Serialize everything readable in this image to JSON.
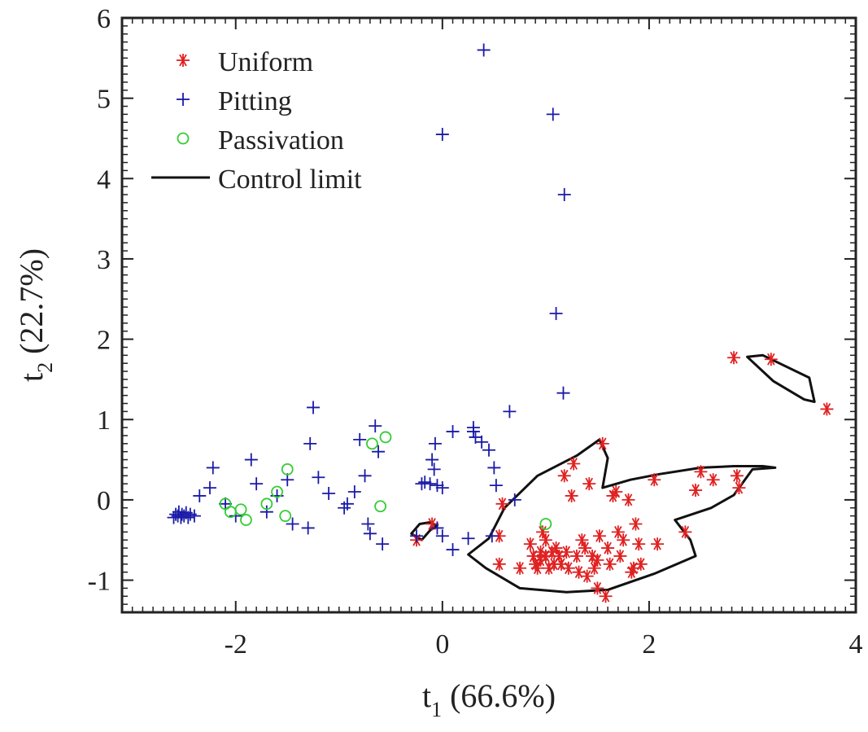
{
  "chart_data": {
    "type": "scatter",
    "title": "",
    "xlabel": {
      "main": "t",
      "sub": "1",
      "rest": " (66.6%)"
    },
    "ylabel": {
      "main": "t",
      "sub": "2",
      "rest": " (22.7%)"
    },
    "xlim": [
      -3.1,
      4.0
    ],
    "ylim": [
      -1.4,
      6.0
    ],
    "xticks": [
      -2,
      0,
      2,
      4
    ],
    "xtick_labels": [
      "-2",
      "0",
      "2",
      "4"
    ],
    "yticks": [
      -1,
      0,
      1,
      2,
      3,
      4,
      5,
      6
    ],
    "ytick_labels": [
      "-1",
      "0",
      "1",
      "2",
      "3",
      "4",
      "5",
      "6"
    ],
    "grid": false,
    "legend_position": "top-left",
    "series": [
      {
        "name": "Uniform",
        "marker": "asterisk",
        "color": "#e02020",
        "points": [
          [
            -0.25,
            -0.5
          ],
          [
            -0.1,
            -0.3
          ],
          [
            0.55,
            -0.45
          ],
          [
            0.55,
            -0.8
          ],
          [
            0.58,
            -0.05
          ],
          [
            0.75,
            -0.85
          ],
          [
            0.85,
            -0.55
          ],
          [
            0.88,
            -0.7
          ],
          [
            0.9,
            -0.8
          ],
          [
            0.92,
            -0.85
          ],
          [
            0.95,
            -0.75
          ],
          [
            0.97,
            -0.4
          ],
          [
            1.0,
            -0.5
          ],
          [
            1.0,
            -0.7
          ],
          [
            1.03,
            -0.85
          ],
          [
            1.06,
            -0.65
          ],
          [
            1.08,
            -0.8
          ],
          [
            1.1,
            -0.6
          ],
          [
            1.13,
            -0.7
          ],
          [
            1.15,
            -0.8
          ],
          [
            1.18,
            0.3
          ],
          [
            1.2,
            -0.65
          ],
          [
            1.22,
            -0.85
          ],
          [
            1.25,
            0.05
          ],
          [
            1.27,
            0.45
          ],
          [
            1.3,
            -0.7
          ],
          [
            1.32,
            -0.9
          ],
          [
            1.35,
            -0.5
          ],
          [
            1.38,
            -0.6
          ],
          [
            1.4,
            -0.95
          ],
          [
            1.42,
            0.2
          ],
          [
            1.45,
            -0.7
          ],
          [
            1.47,
            -0.85
          ],
          [
            1.5,
            -1.1
          ],
          [
            1.52,
            -0.45
          ],
          [
            1.55,
            0.7
          ],
          [
            1.58,
            -1.2
          ],
          [
            1.6,
            -0.6
          ],
          [
            1.62,
            -0.8
          ],
          [
            1.65,
            0.05
          ],
          [
            1.68,
            0.1
          ],
          [
            1.7,
            -0.4
          ],
          [
            1.72,
            -0.7
          ],
          [
            1.75,
            -0.5
          ],
          [
            1.8,
            0.0
          ],
          [
            1.83,
            -0.9
          ],
          [
            1.87,
            -0.3
          ],
          [
            1.9,
            -0.55
          ],
          [
            1.92,
            -0.8
          ],
          [
            2.05,
            0.25
          ],
          [
            2.08,
            -0.55
          ],
          [
            2.35,
            -0.4
          ],
          [
            2.45,
            0.12
          ],
          [
            2.5,
            0.35
          ],
          [
            2.62,
            0.25
          ],
          [
            2.85,
            0.3
          ],
          [
            2.87,
            0.15
          ],
          [
            2.82,
            1.77
          ],
          [
            3.18,
            1.75
          ],
          [
            3.72,
            1.13
          ],
          [
            1.85,
            -0.85
          ],
          [
            1.5,
            -0.75
          ],
          [
            0.95,
            -0.65
          ]
        ]
      },
      {
        "name": "Pitting",
        "marker": "plus",
        "color": "#1a1aa8",
        "points": [
          [
            -2.6,
            -0.22
          ],
          [
            -2.58,
            -0.18
          ],
          [
            -2.56,
            -0.2
          ],
          [
            -2.55,
            -0.15
          ],
          [
            -2.53,
            -0.22
          ],
          [
            -2.52,
            -0.18
          ],
          [
            -2.5,
            -0.2
          ],
          [
            -2.48,
            -0.16
          ],
          [
            -2.46,
            -0.22
          ],
          [
            -2.44,
            -0.18
          ],
          [
            -2.4,
            -0.2
          ],
          [
            -2.35,
            0.05
          ],
          [
            -2.25,
            0.15
          ],
          [
            -2.22,
            0.4
          ],
          [
            -2.1,
            -0.05
          ],
          [
            -2.0,
            -0.2
          ],
          [
            -1.85,
            0.5
          ],
          [
            -1.8,
            0.2
          ],
          [
            -1.7,
            -0.15
          ],
          [
            -1.6,
            0.05
          ],
          [
            -1.5,
            0.25
          ],
          [
            -1.45,
            -0.3
          ],
          [
            -1.3,
            -0.35
          ],
          [
            -1.28,
            0.7
          ],
          [
            -1.25,
            1.15
          ],
          [
            -1.2,
            0.28
          ],
          [
            -1.1,
            0.08
          ],
          [
            -0.95,
            -0.1
          ],
          [
            -0.92,
            -0.05
          ],
          [
            -0.85,
            0.1
          ],
          [
            -0.8,
            0.75
          ],
          [
            -0.75,
            0.3
          ],
          [
            -0.72,
            -0.3
          ],
          [
            -0.7,
            -0.42
          ],
          [
            -0.65,
            0.92
          ],
          [
            -0.62,
            0.6
          ],
          [
            -0.58,
            -0.55
          ],
          [
            -0.25,
            -0.45
          ],
          [
            -0.2,
            0.2
          ],
          [
            -0.17,
            0.22
          ],
          [
            -0.12,
            0.2
          ],
          [
            -0.1,
            0.5
          ],
          [
            -0.08,
            0.38
          ],
          [
            -0.07,
            0.7
          ],
          [
            -0.05,
            0.18
          ],
          [
            0.0,
            0.15
          ],
          [
            0.0,
            -0.45
          ],
          [
            -0.05,
            -0.35
          ],
          [
            0.0,
            4.55
          ],
          [
            0.1,
            0.85
          ],
          [
            0.1,
            -0.62
          ],
          [
            0.25,
            -0.48
          ],
          [
            0.3,
            0.85
          ],
          [
            0.32,
            0.78
          ],
          [
            0.38,
            0.72
          ],
          [
            0.45,
            0.62
          ],
          [
            0.5,
            0.4
          ],
          [
            0.52,
            0.18
          ],
          [
            0.48,
            -0.45
          ],
          [
            0.4,
            5.6
          ],
          [
            0.65,
            1.1
          ],
          [
            0.7,
            0.0
          ],
          [
            1.07,
            4.8
          ],
          [
            1.1,
            2.32
          ],
          [
            1.18,
            3.8
          ],
          [
            1.17,
            1.33
          ],
          [
            0.3,
            0.9
          ]
        ]
      },
      {
        "name": "Passivation",
        "marker": "circle",
        "color": "#33cc33",
        "points": [
          [
            -2.1,
            -0.05
          ],
          [
            -2.05,
            -0.15
          ],
          [
            -1.9,
            -0.25
          ],
          [
            -1.7,
            -0.05
          ],
          [
            -1.6,
            0.1
          ],
          [
            -1.5,
            0.38
          ],
          [
            -1.52,
            -0.2
          ],
          [
            -0.6,
            -0.08
          ],
          [
            -0.55,
            0.78
          ],
          [
            -0.68,
            0.7
          ],
          [
            1.0,
            -0.3
          ],
          [
            -1.95,
            -0.12
          ]
        ]
      }
    ],
    "control_limit": {
      "name": "Control limit",
      "color": "#111111",
      "regions": [
        [
          [
            0.92,
            0.3
          ],
          [
            1.3,
            0.55
          ],
          [
            1.52,
            0.75
          ],
          [
            1.6,
            0.52
          ],
          [
            1.55,
            0.15
          ],
          [
            1.82,
            0.25
          ],
          [
            2.1,
            0.32
          ],
          [
            2.5,
            0.4
          ],
          [
            2.82,
            0.42
          ],
          [
            3.1,
            0.42
          ],
          [
            3.22,
            0.4
          ],
          [
            3.0,
            0.38
          ],
          [
            2.82,
            0.06
          ],
          [
            2.6,
            -0.1
          ],
          [
            2.25,
            -0.25
          ],
          [
            2.4,
            -0.5
          ],
          [
            2.45,
            -0.7
          ],
          [
            2.05,
            -0.92
          ],
          [
            1.6,
            -1.12
          ],
          [
            1.2,
            -1.15
          ],
          [
            0.75,
            -1.1
          ],
          [
            0.42,
            -0.85
          ],
          [
            0.25,
            -0.68
          ],
          [
            0.45,
            -0.48
          ],
          [
            0.6,
            -0.1
          ],
          [
            0.92,
            0.3
          ]
        ],
        [
          [
            -0.2,
            -0.5
          ],
          [
            -0.12,
            -0.38
          ],
          [
            -0.05,
            -0.32
          ],
          [
            -0.12,
            -0.28
          ],
          [
            -0.22,
            -0.3
          ],
          [
            -0.3,
            -0.42
          ],
          [
            -0.2,
            -0.5
          ]
        ],
        [
          [
            2.95,
            1.78
          ],
          [
            3.1,
            1.8
          ],
          [
            3.55,
            1.52
          ],
          [
            3.6,
            1.22
          ],
          [
            3.5,
            1.25
          ],
          [
            3.2,
            1.48
          ],
          [
            2.95,
            1.78
          ]
        ]
      ]
    },
    "legend": [
      "Uniform",
      "Pitting",
      "Passivation",
      "Control limit"
    ]
  }
}
